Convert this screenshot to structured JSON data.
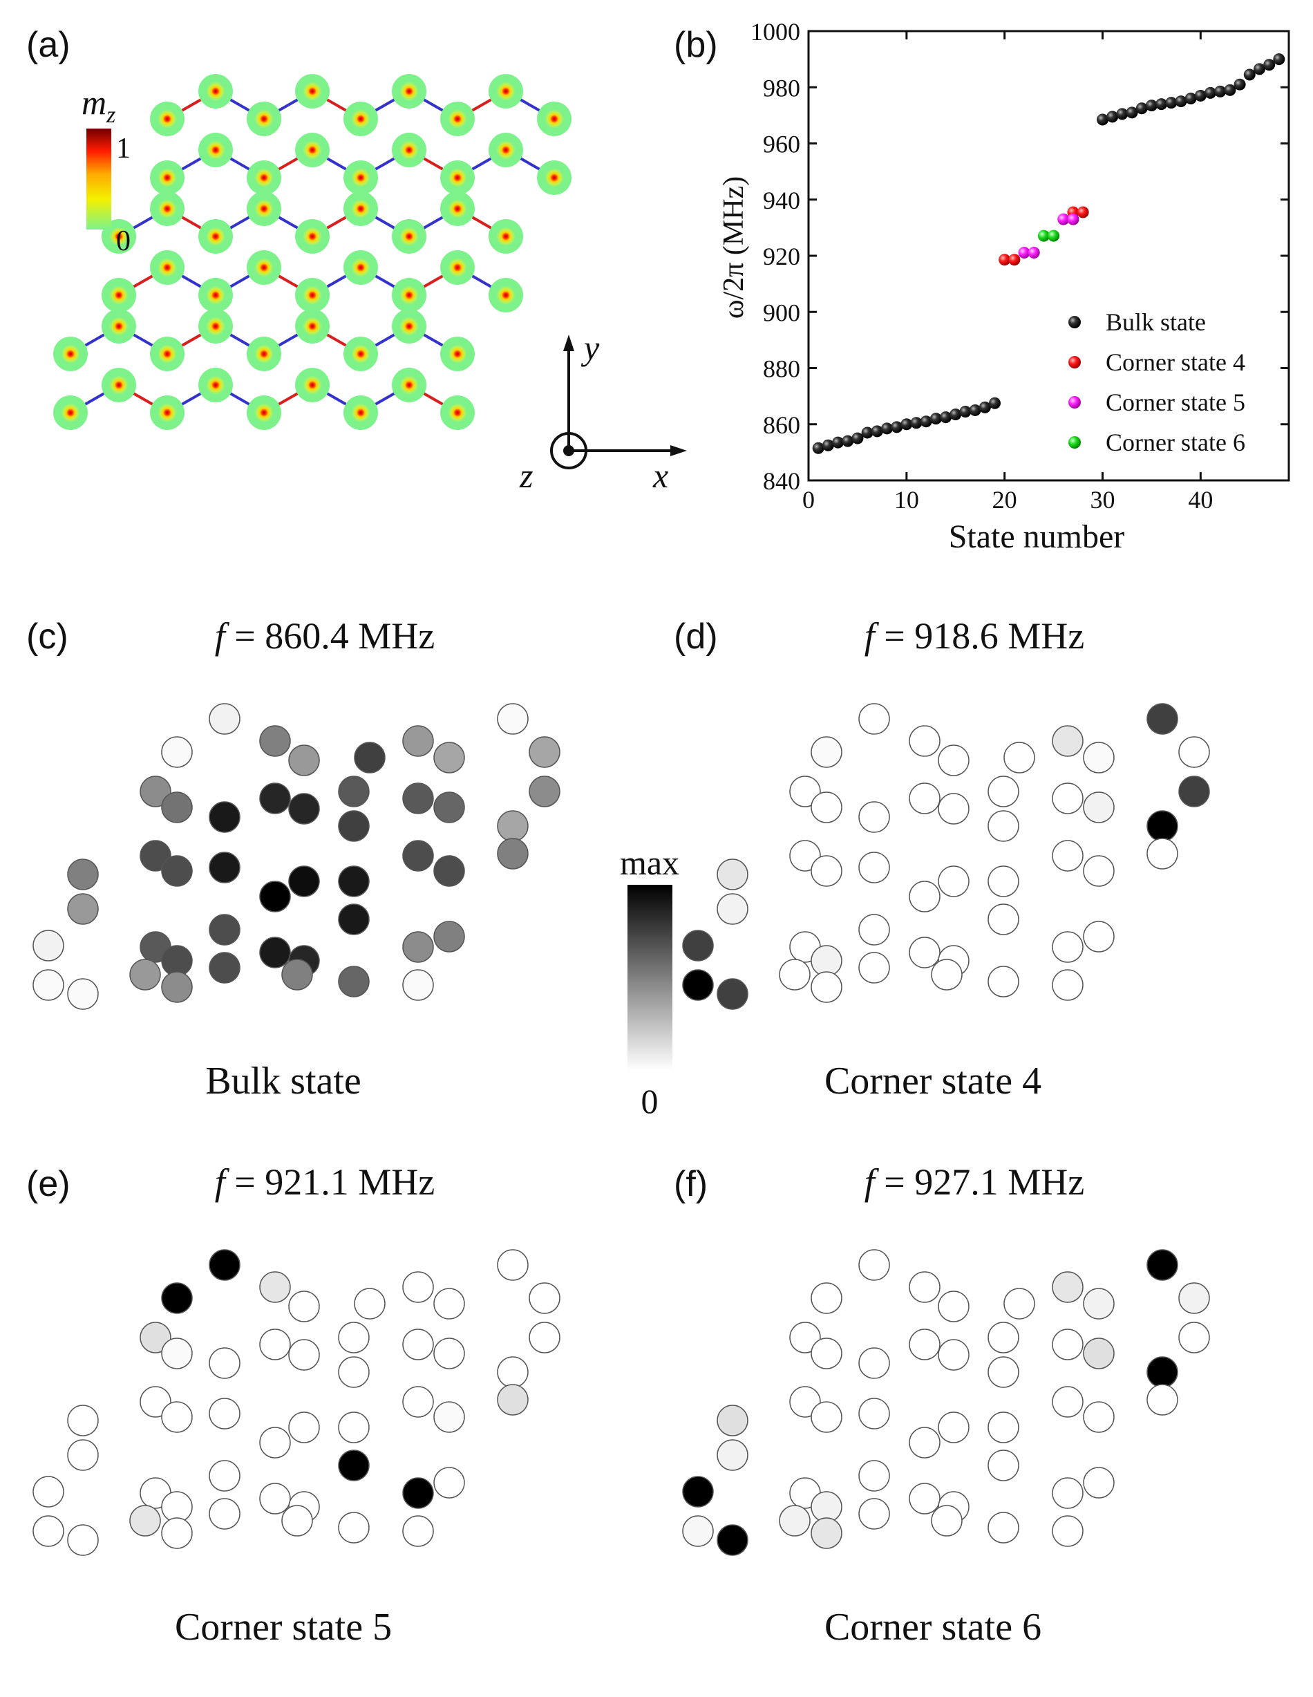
{
  "panel_labels": {
    "a": "(a)",
    "b": "(b)",
    "c": "(c)",
    "d": "(d)",
    "e": "(e)",
    "f": "(f)"
  },
  "colors": {
    "strong_bond": "#d81e1e",
    "weak_bond": "#3333cc",
    "disk": "#7df28a",
    "bulk": "#000000",
    "corner4": "#ff2020",
    "corner5": "#ff22ff",
    "corner6": "#22dd22"
  },
  "panel_a": {
    "colorbar_label": "m",
    "colorbar_label_sub": "z",
    "colorbar_max": "1",
    "colorbar_min": "0",
    "axis_x": "x",
    "axis_y": "y",
    "axis_z": "z"
  },
  "panel_b": {
    "ylabel": "ω/2π (MHz)",
    "xlabel": "State number"
  },
  "chart_data": [
    {
      "type": "scatter",
      "title": "",
      "xlabel": "State number",
      "ylabel": "ω/2π (MHz)",
      "xlim": [
        0,
        49
      ],
      "ylim": [
        840,
        1000
      ],
      "xticks": [
        0,
        10,
        20,
        30,
        40
      ],
      "yticks": [
        840,
        860,
        880,
        900,
        920,
        940,
        960,
        980,
        1000
      ],
      "legend_position": "bottom-right",
      "series": [
        {
          "name": "Bulk state",
          "color": "#000000",
          "x": [
            1,
            2,
            3,
            4,
            5,
            6,
            7,
            8,
            9,
            10,
            11,
            12,
            13,
            14,
            15,
            16,
            17,
            18,
            19,
            30,
            31,
            32,
            33,
            34,
            35,
            36,
            37,
            38,
            39,
            40,
            41,
            42,
            43,
            44,
            45,
            46,
            47,
            48
          ],
          "y": [
            851.5,
            852.5,
            853.5,
            854,
            855,
            857,
            857.5,
            858.5,
            859,
            860,
            860.5,
            861,
            862,
            862.5,
            863.5,
            864.5,
            865,
            866,
            867.5,
            968.5,
            969.5,
            970.5,
            971,
            972.5,
            973.5,
            974,
            974.5,
            975,
            976,
            977,
            978,
            978.5,
            979,
            981,
            984.5,
            986.5,
            988,
            990
          ]
        },
        {
          "name": "Corner state 4",
          "color": "#ff2020",
          "x": [
            20,
            21,
            27,
            28
          ],
          "y": [
            918.6,
            918.6,
            935.5,
            935.5
          ]
        },
        {
          "name": "Corner state 5",
          "color": "#ff22ff",
          "x": [
            22,
            23,
            26,
            27
          ],
          "y": [
            921.1,
            921.1,
            933,
            933
          ]
        },
        {
          "name": "Corner state 6",
          "color": "#22dd22",
          "x": [
            24,
            25
          ],
          "y": [
            927.1,
            927.1
          ]
        }
      ]
    }
  ],
  "panels_maps": [
    {
      "id": "c",
      "freq_prefix": "f",
      "freq": " = 860.4 MHz",
      "caption": "Bulk state"
    },
    {
      "id": "d",
      "freq_prefix": "f",
      "freq": " = 918.6 MHz",
      "caption": "Corner state 4"
    },
    {
      "id": "e",
      "freq_prefix": "f",
      "freq": " = 921.1 MHz",
      "caption": "Corner state 5"
    },
    {
      "id": "f",
      "freq_prefix": "f",
      "freq": " = 927.1 MHz",
      "caption": "Corner state 6"
    }
  ],
  "grayscale_colorbar": {
    "max": "max",
    "min": "0"
  }
}
